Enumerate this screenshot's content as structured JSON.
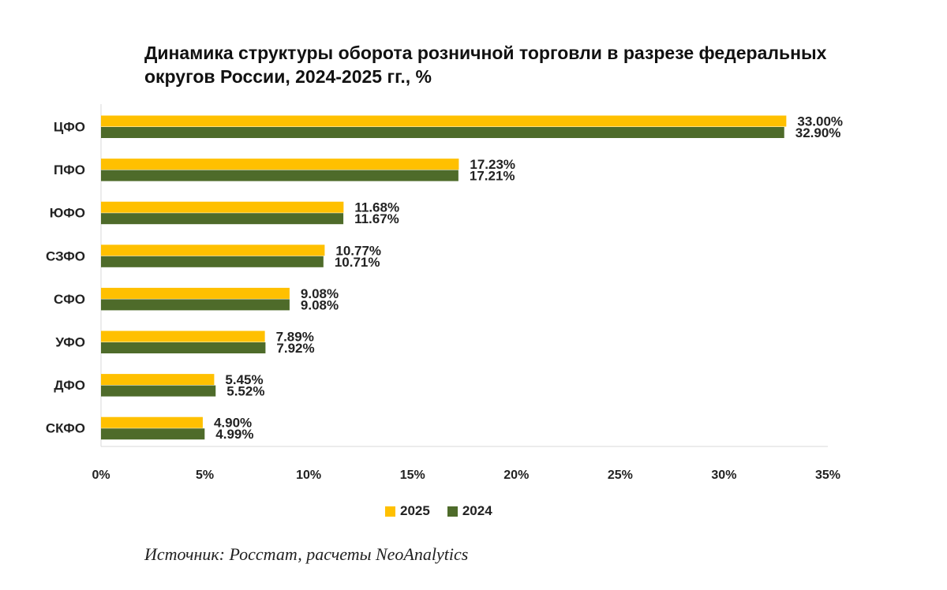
{
  "title_line1": "Динамика структуры оборота розничной торговли в разрезе федеральных",
  "title_line2": "округов России, 2024-2025 гг., %",
  "source": "Источник: Росстат, расчеты NeoAnalytics",
  "colors": {
    "s2025": "#FFC000",
    "s2024": "#4E6B2A",
    "axis": "#d9d9d9"
  },
  "chart_data": {
    "type": "bar",
    "orientation": "horizontal",
    "categories": [
      "ЦФО",
      "ПФО",
      "ЮФО",
      "СЗФО",
      "СФО",
      "УФО",
      "ДФО",
      "СКФО"
    ],
    "series": [
      {
        "name": "2025",
        "values": [
          33.0,
          17.23,
          11.68,
          10.77,
          9.08,
          7.89,
          5.45,
          4.9
        ],
        "labels": [
          "33.00%",
          "17.23%",
          "11.68%",
          "10.77%",
          "9.08%",
          "7.89%",
          "5.45%",
          "4.90%"
        ]
      },
      {
        "name": "2024",
        "values": [
          32.9,
          17.21,
          11.67,
          10.71,
          9.08,
          7.92,
          5.52,
          4.99
        ],
        "labels": [
          "32.90%",
          "17.21%",
          "11.67%",
          "10.71%",
          "9.08%",
          "7.92%",
          "5.52%",
          "4.99%"
        ]
      }
    ],
    "xlim": [
      0,
      35
    ],
    "xticks": [
      0,
      5,
      10,
      15,
      20,
      25,
      30,
      35
    ],
    "xtick_labels": [
      "0%",
      "5%",
      "10%",
      "15%",
      "20%",
      "25%",
      "30%",
      "35%"
    ],
    "legend_position": "bottom",
    "grid": false
  }
}
